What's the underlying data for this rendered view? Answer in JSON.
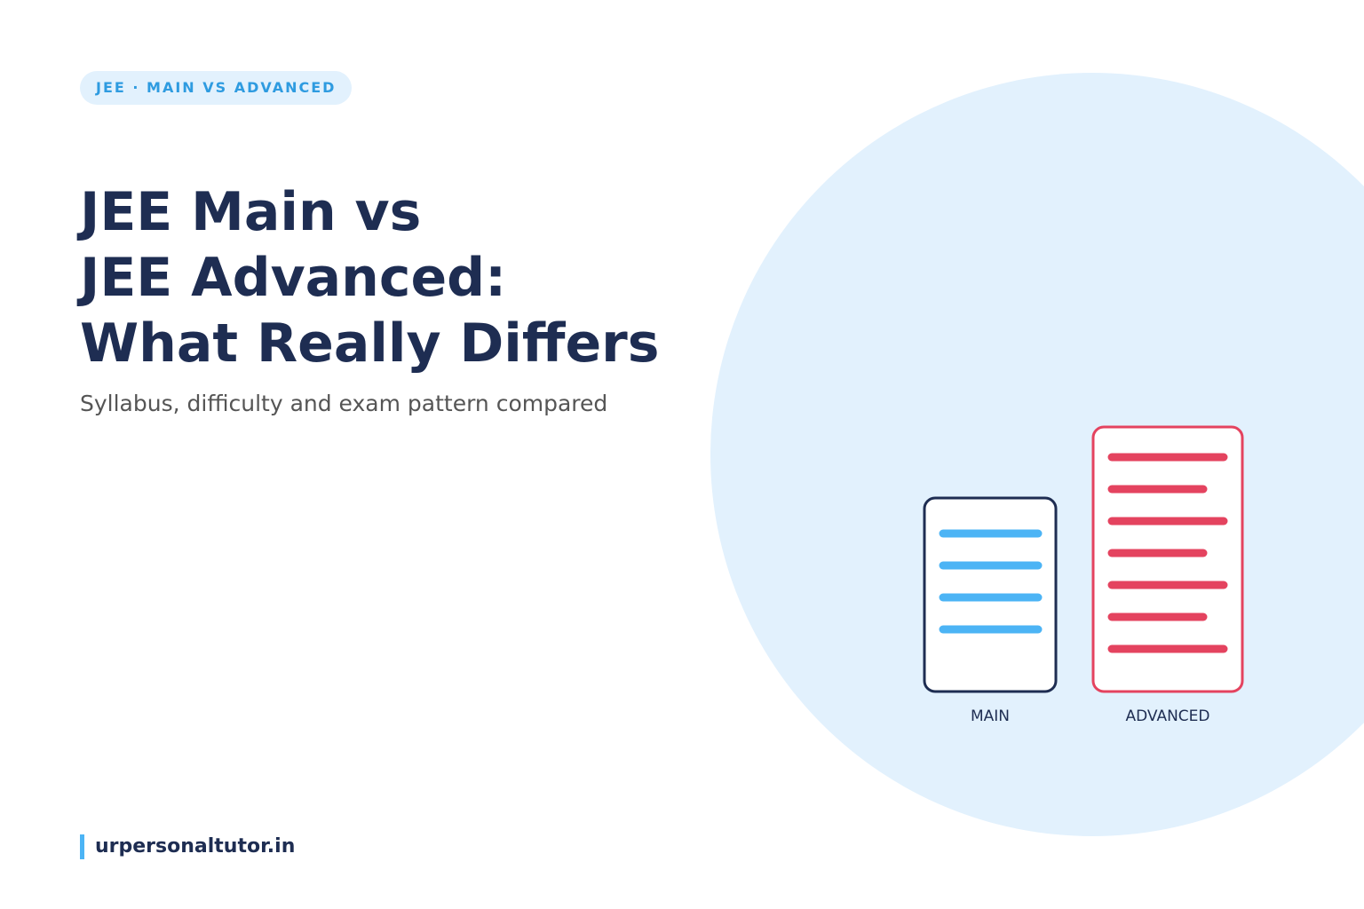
{
  "tag": "JEE · MAIN VS ADVANCED",
  "title": [
    "JEE Main vs",
    "JEE Advanced:",
    "What Really Differs"
  ],
  "subtitle": "Syllabus, difficulty and exam pattern compared",
  "illustration": {
    "left_label": "MAIN",
    "right_label": "ADVANCED"
  },
  "footer": "urpersonaltutor.in"
}
